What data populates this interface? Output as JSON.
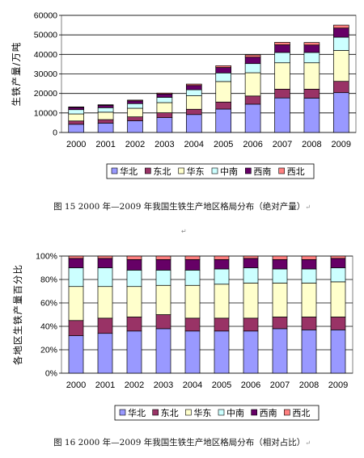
{
  "chart_data": [
    {
      "type": "bar",
      "stacked": true,
      "categories": [
        "2000",
        "2001",
        "2002",
        "2003",
        "2004",
        "2005",
        "2006",
        "2007",
        "2008",
        "2009"
      ],
      "ylabel": "生铁产量/万吨",
      "ylim": [
        0,
        60000
      ],
      "yticks": [
        "0",
        "10000",
        "20000",
        "30000",
        "40000",
        "50000",
        "60000"
      ],
      "grid": true,
      "legend_position": "bottom",
      "series": [
        {
          "name": "华北",
          "color": "#9999ff",
          "values": [
            4200,
            4800,
            6000,
            7600,
            9200,
            12000,
            14500,
            17700,
            17600,
            20400
          ]
        },
        {
          "name": "东北",
          "color": "#993366",
          "values": [
            1700,
            1800,
            2000,
            2500,
            2700,
            3600,
            4200,
            4500,
            4600,
            5800
          ]
        },
        {
          "name": "华东",
          "color": "#ffffcc",
          "values": [
            3600,
            3800,
            4400,
            5200,
            6900,
            10500,
            11900,
            13500,
            13500,
            15800
          ]
        },
        {
          "name": "中南",
          "color": "#ccffff",
          "values": [
            2200,
            2300,
            2400,
            2700,
            3100,
            4400,
            4700,
            5300,
            5300,
            6800
          ]
        },
        {
          "name": "西南",
          "color": "#660066",
          "values": [
            1100,
            1200,
            1400,
            1700,
            2200,
            2800,
            3300,
            3900,
            3800,
            4700
          ]
        },
        {
          "name": "西北",
          "color": "#ff8080",
          "values": [
            300,
            300,
            400,
            500,
            700,
            900,
            1100,
            1300,
            1300,
            1500
          ]
        }
      ]
    },
    {
      "type": "bar",
      "stacked": true,
      "percent": true,
      "categories": [
        "2000",
        "2001",
        "2002",
        "2003",
        "2004",
        "2005",
        "2006",
        "2007",
        "2008",
        "2009"
      ],
      "ylabel": "各地区生铁产量百分比",
      "ylim": [
        0,
        100
      ],
      "yticks": [
        "0%",
        "20%",
        "40%",
        "60%",
        "80%",
        "100%"
      ],
      "grid": true,
      "legend_position": "bottom",
      "series": [
        {
          "name": "华北",
          "color": "#9999ff",
          "values": [
            32,
            34,
            36,
            38,
            36,
            36,
            36,
            38,
            37,
            37
          ]
        },
        {
          "name": "东北",
          "color": "#993366",
          "values": [
            13,
            13,
            12,
            12,
            11,
            11,
            11,
            10,
            11,
            11
          ]
        },
        {
          "name": "华东",
          "color": "#ffffcc",
          "values": [
            29,
            27,
            26,
            25,
            28,
            29,
            30,
            29,
            29,
            30
          ]
        },
        {
          "name": "中南",
          "color": "#ccffff",
          "values": [
            16,
            16,
            14,
            13,
            13,
            13,
            13,
            12,
            12,
            12
          ]
        },
        {
          "name": "西南",
          "color": "#660066",
          "values": [
            8,
            8,
            9,
            9,
            9,
            8,
            8,
            8,
            8,
            8
          ]
        },
        {
          "name": "西北",
          "color": "#ff8080",
          "values": [
            2,
            2,
            3,
            3,
            3,
            3,
            2,
            3,
            3,
            2
          ]
        }
      ]
    }
  ],
  "captions": {
    "fig15": "图 15 2000 年—2009 年我国生铁生产地区格局分布（绝对产量）",
    "fig16": "图 16 2000 年—2009 年我国生铁生产地区格局分布（相对占比）",
    "return_mark": "↵"
  }
}
